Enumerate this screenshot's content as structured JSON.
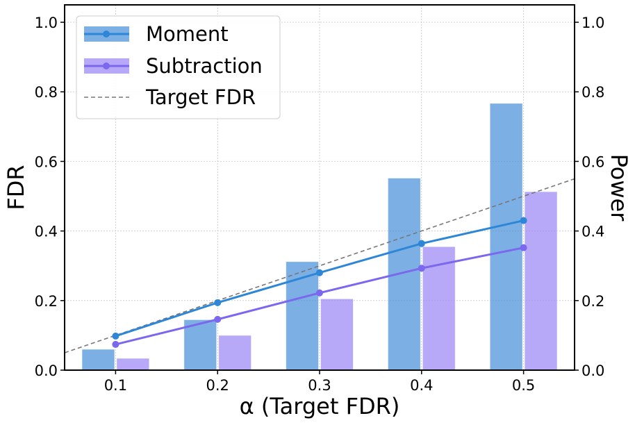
{
  "chart_data": {
    "type": "bar",
    "x_ticks": [
      "0.1",
      "0.2",
      "0.3",
      "0.4",
      "0.5"
    ],
    "x": [
      0.1,
      0.2,
      0.3,
      0.4,
      0.5
    ],
    "xlim": [
      0.05,
      0.55
    ],
    "xlabel": "α (Target FDR)",
    "ylabel_left": "FDR",
    "ylabel_right": "Power",
    "ylim": [
      0,
      1.05
    ],
    "y_ticks": [
      "0.0",
      "0.2",
      "0.4",
      "0.6",
      "0.8",
      "1.0"
    ],
    "grid": true,
    "legend_position": "top-left",
    "bar_series": [
      {
        "name": "Moment",
        "axis": "FDR",
        "color": "#4a90d9",
        "values": [
          0.06,
          0.145,
          0.312,
          0.552,
          0.767
        ]
      },
      {
        "name": "Subtraction",
        "axis": "FDR",
        "color": "#9b87f5",
        "values": [
          0.034,
          0.1,
          0.205,
          0.355,
          0.513
        ]
      }
    ],
    "line_series": [
      {
        "name": "Moment",
        "axis": "Power",
        "color": "#2e86d6",
        "values": [
          0.098,
          0.194,
          0.28,
          0.364,
          0.43
        ]
      },
      {
        "name": "Subtraction",
        "axis": "Power",
        "color": "#7b68ee",
        "values": [
          0.074,
          0.146,
          0.222,
          0.293,
          0.352
        ]
      }
    ],
    "reference_line": {
      "name": "Target FDR",
      "style": "dashed",
      "color": "#777777",
      "from": [
        0.05,
        0.05
      ],
      "to": [
        0.55,
        0.55
      ]
    },
    "legend": [
      "Moment",
      "Subtraction",
      "Target FDR"
    ]
  }
}
